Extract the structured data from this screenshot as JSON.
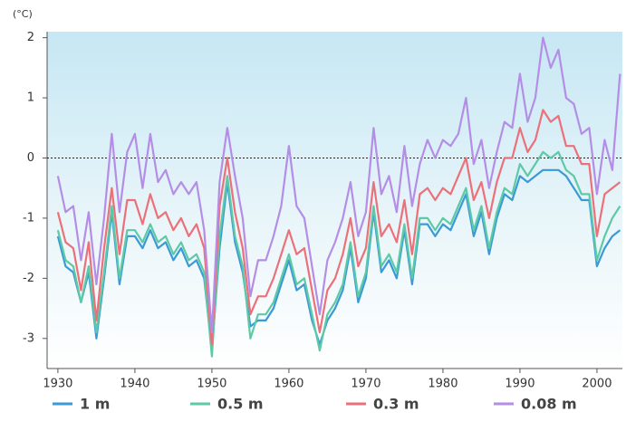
{
  "chart_data": {
    "type": "line",
    "y_unit_label": "(°C)",
    "x": [
      1930,
      1931,
      1932,
      1933,
      1934,
      1935,
      1936,
      1937,
      1938,
      1939,
      1940,
      1941,
      1942,
      1943,
      1944,
      1945,
      1946,
      1947,
      1948,
      1949,
      1950,
      1951,
      1952,
      1953,
      1954,
      1955,
      1956,
      1957,
      1958,
      1959,
      1960,
      1961,
      1962,
      1963,
      1964,
      1965,
      1966,
      1967,
      1968,
      1969,
      1970,
      1971,
      1972,
      1973,
      1974,
      1975,
      1976,
      1977,
      1978,
      1979,
      1980,
      1981,
      1982,
      1983,
      1984,
      1985,
      1986,
      1987,
      1988,
      1989,
      1990,
      1991,
      1992,
      1993,
      1994,
      1995,
      1996,
      1997,
      1998,
      1999,
      2000,
      2001,
      2002,
      2003
    ],
    "series": [
      {
        "name": "1 m",
        "color": "#3a9ad6",
        "values": [
          -1.3,
          -1.8,
          -1.9,
          -2.4,
          -1.9,
          -3.0,
          -2.0,
          -0.9,
          -2.1,
          -1.3,
          -1.3,
          -1.5,
          -1.2,
          -1.5,
          -1.4,
          -1.7,
          -1.5,
          -1.8,
          -1.7,
          -2.0,
          -3.2,
          -1.5,
          -0.4,
          -1.4,
          -1.9,
          -2.8,
          -2.7,
          -2.7,
          -2.5,
          -2.1,
          -1.7,
          -2.2,
          -2.1,
          -2.7,
          -3.1,
          -2.7,
          -2.5,
          -2.2,
          -1.5,
          -2.4,
          -2.0,
          -0.9,
          -1.9,
          -1.7,
          -2.0,
          -1.2,
          -2.1,
          -1.1,
          -1.1,
          -1.3,
          -1.1,
          -1.2,
          -0.9,
          -0.6,
          -1.3,
          -0.9,
          -1.6,
          -1.0,
          -0.6,
          -0.7,
          -0.3,
          -0.4,
          -0.3,
          -0.2,
          -0.2,
          -0.2,
          -0.3,
          -0.5,
          -0.7,
          -0.7,
          -1.8,
          -1.5,
          -1.3,
          -1.2
        ]
      },
      {
        "name": "0.5 m",
        "color": "#5ec9a6",
        "values": [
          -1.2,
          -1.7,
          -1.8,
          -2.4,
          -1.8,
          -2.9,
          -1.9,
          -0.8,
          -2.0,
          -1.2,
          -1.2,
          -1.4,
          -1.1,
          -1.4,
          -1.3,
          -1.6,
          -1.4,
          -1.7,
          -1.6,
          -1.9,
          -3.3,
          -1.3,
          -0.3,
          -1.3,
          -1.8,
          -3.0,
          -2.6,
          -2.6,
          -2.4,
          -2.0,
          -1.6,
          -2.1,
          -2.0,
          -2.6,
          -3.2,
          -2.6,
          -2.4,
          -2.1,
          -1.4,
          -2.3,
          -1.9,
          -0.8,
          -1.8,
          -1.6,
          -1.9,
          -1.1,
          -2.0,
          -1.0,
          -1.0,
          -1.2,
          -1.0,
          -1.1,
          -0.8,
          -0.5,
          -1.2,
          -0.8,
          -1.5,
          -0.9,
          -0.5,
          -0.6,
          -0.1,
          -0.3,
          -0.1,
          0.1,
          0.0,
          0.1,
          -0.2,
          -0.3,
          -0.6,
          -0.6,
          -1.7,
          -1.3,
          -1.0,
          -0.8
        ]
      },
      {
        "name": "0.3 m",
        "color": "#ec707a",
        "values": [
          -0.9,
          -1.4,
          -1.5,
          -2.2,
          -1.4,
          -2.7,
          -1.5,
          -0.5,
          -1.6,
          -0.7,
          -0.7,
          -1.1,
          -0.6,
          -1.0,
          -0.9,
          -1.2,
          -1.0,
          -1.3,
          -1.1,
          -1.5,
          -3.1,
          -0.8,
          0.0,
          -0.9,
          -1.5,
          -2.6,
          -2.3,
          -2.3,
          -2.0,
          -1.6,
          -1.2,
          -1.6,
          -1.5,
          -2.2,
          -2.9,
          -2.2,
          -2.0,
          -1.6,
          -1.0,
          -1.8,
          -1.5,
          -0.4,
          -1.3,
          -1.1,
          -1.4,
          -0.7,
          -1.6,
          -0.6,
          -0.5,
          -0.7,
          -0.5,
          -0.6,
          -0.3,
          0.0,
          -0.7,
          -0.4,
          -1.0,
          -0.4,
          0.0,
          0.0,
          0.5,
          0.1,
          0.3,
          0.8,
          0.6,
          0.7,
          0.2,
          0.2,
          -0.1,
          -0.1,
          -1.3,
          -0.6,
          -0.5,
          -0.4
        ]
      },
      {
        "name": "0.08 m",
        "color": "#b48ee6",
        "values": [
          -0.3,
          -0.9,
          -0.8,
          -1.7,
          -0.9,
          -2.1,
          -1.0,
          0.4,
          -0.9,
          0.1,
          0.4,
          -0.5,
          0.4,
          -0.4,
          -0.2,
          -0.6,
          -0.4,
          -0.6,
          -0.4,
          -1.2,
          -2.9,
          -0.4,
          0.5,
          -0.3,
          -1.0,
          -2.3,
          -1.7,
          -1.7,
          -1.3,
          -0.8,
          0.2,
          -0.8,
          -1.0,
          -1.8,
          -2.6,
          -1.7,
          -1.4,
          -1.0,
          -0.4,
          -1.3,
          -0.9,
          0.5,
          -0.6,
          -0.3,
          -0.9,
          0.2,
          -0.8,
          -0.1,
          0.3,
          0.0,
          0.3,
          0.2,
          0.4,
          1.0,
          -0.1,
          0.3,
          -0.5,
          0.1,
          0.6,
          0.5,
          1.4,
          0.6,
          1.0,
          2.0,
          1.5,
          1.8,
          1.0,
          0.9,
          0.4,
          0.5,
          -0.6,
          0.3,
          -0.2,
          1.4
        ]
      }
    ],
    "xlim": [
      1928.6,
      2003.3
    ],
    "xticks": [
      1930,
      1940,
      1950,
      1960,
      1970,
      1980,
      1990,
      2000
    ],
    "ylim": [
      -3.5,
      2.1
    ],
    "yticks": [
      -3,
      -2,
      -1,
      0,
      1,
      2
    ],
    "zero_line": true,
    "legend": "bottom"
  }
}
